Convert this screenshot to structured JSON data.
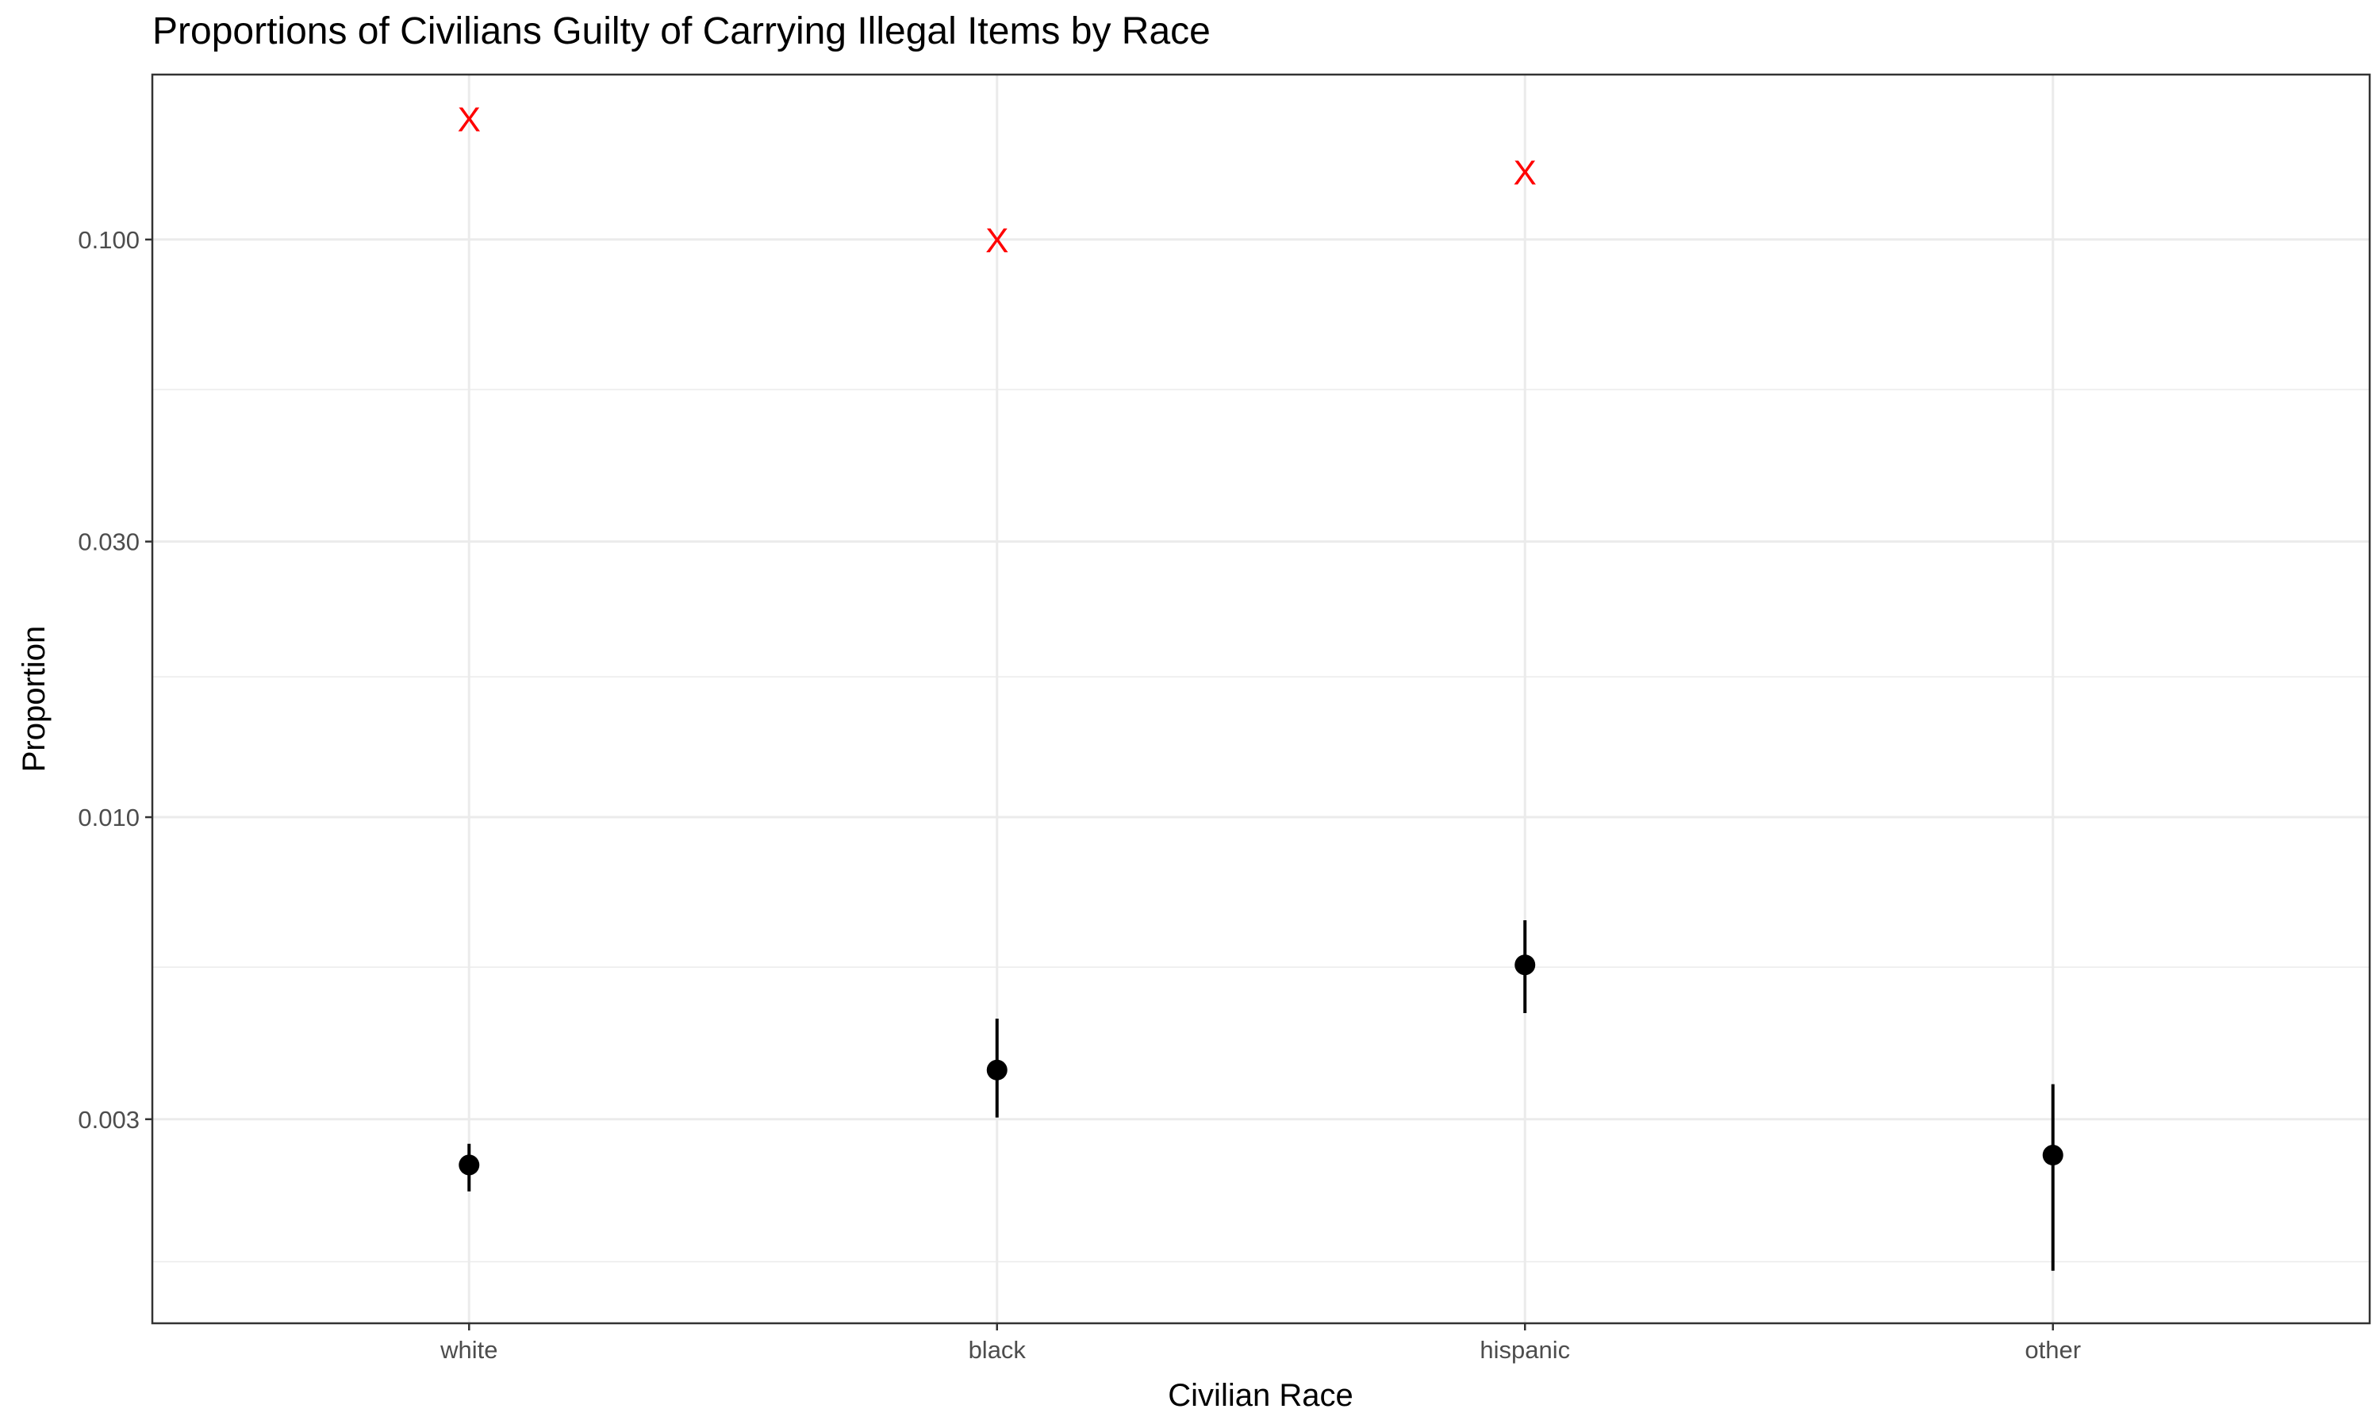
{
  "chart_data": {
    "type": "scatter",
    "title": "Proportions of Civilians Guilty of Carrying Illegal Items by Race",
    "xlabel": "Civilian Race",
    "ylabel": "Proportion",
    "y_scale": "log",
    "categories": [
      "white",
      "black",
      "hispanic",
      "other"
    ],
    "y_ticks": [
      0.003,
      0.01,
      0.03,
      0.1
    ],
    "y_tick_labels": [
      "0.003",
      "0.010",
      "0.030",
      "0.100"
    ],
    "y_minor_ticks": [
      0.0017,
      0.0055,
      0.0175,
      0.055
    ],
    "ylim": [
      0.00133,
      0.193
    ],
    "grid": true,
    "points": [
      {
        "category": "white",
        "value": 0.0025,
        "lower": 0.00225,
        "upper": 0.00272
      },
      {
        "category": "black",
        "value": 0.00365,
        "lower": 0.00302,
        "upper": 0.00448
      },
      {
        "category": "hispanic",
        "value": 0.00555,
        "lower": 0.00458,
        "upper": 0.00663
      },
      {
        "category": "other",
        "value": 0.0026,
        "lower": 0.00164,
        "upper": 0.00345
      }
    ],
    "markers": [
      {
        "category": "white",
        "value": 0.162,
        "label": "X",
        "color": "#ff0000"
      },
      {
        "category": "black",
        "value": 0.1,
        "label": "X",
        "color": "#ff0000"
      },
      {
        "category": "hispanic",
        "value": 0.131,
        "label": "X",
        "color": "#ff0000"
      }
    ]
  }
}
